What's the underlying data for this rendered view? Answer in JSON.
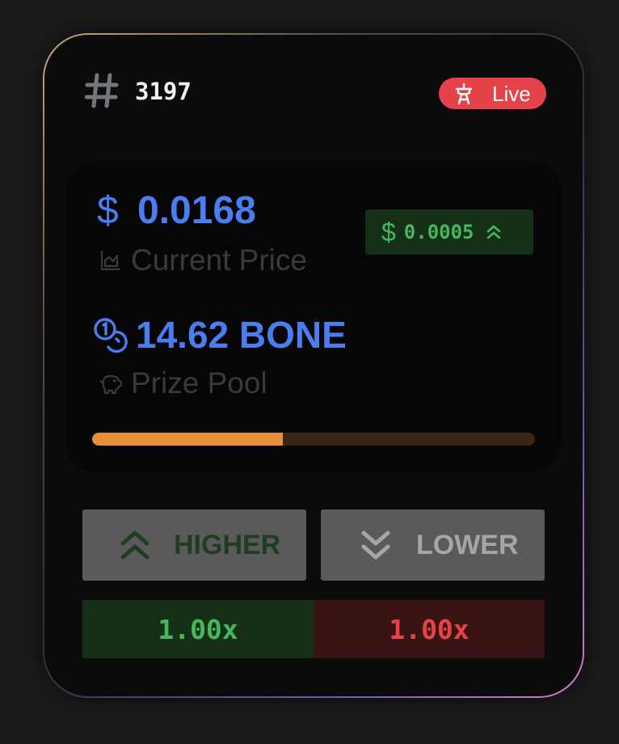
{
  "round": {
    "number": "3197"
  },
  "status": {
    "label": "Live",
    "color": "#e5424a",
    "icon": "ferris-wheel-icon"
  },
  "price": {
    "currency_symbol": "$",
    "value": "0.0168",
    "label": "Current Price",
    "icon": "chart-area-icon",
    "change": {
      "currency_symbol": "$",
      "value": "0.0005",
      "direction_icon": "chevrons-up-icon",
      "color": "#45b85d"
    }
  },
  "prize_pool": {
    "value": "14.62 BONE",
    "label": "Prize Pool",
    "icon": "coins-icon",
    "label_icon": "piggy-bank-icon"
  },
  "progress": {
    "fraction": 0.43,
    "fill_color": "#e68f36"
  },
  "bets": {
    "higher": {
      "label": "HIGHER",
      "icon": "chevrons-up-icon",
      "multiplier": "1.00x"
    },
    "lower": {
      "label": "LOWER",
      "icon": "chevrons-down-icon",
      "multiplier": "1.00x"
    }
  },
  "colors": {
    "accent_blue": "#4a7ef0",
    "green": "#45b85d",
    "red": "#e5424a"
  }
}
